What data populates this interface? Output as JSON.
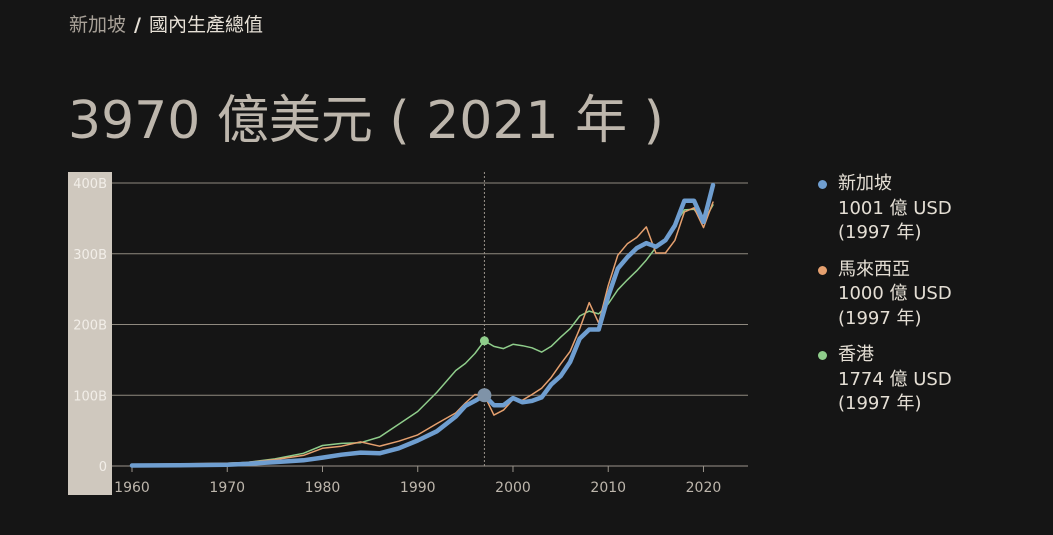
{
  "breadcrumb": {
    "parent": "新加坡",
    "separator": "/",
    "current": "國內生產總值"
  },
  "headline": "3970 億美元 ( 2021 年 )",
  "legend": [
    {
      "name": "新加坡",
      "value": "1001 億 USD",
      "year": "(1997 年)",
      "color": "#6f9ed0"
    },
    {
      "name": "馬來西亞",
      "value": "1000 億 USD",
      "year": "(1997 年)",
      "color": "#e5a06f"
    },
    {
      "name": "香港",
      "value": "1774 億 USD",
      "year": "(1997 年)",
      "color": "#8fcd8b"
    }
  ],
  "chart_data": {
    "type": "line",
    "x_range": [
      1960,
      2021
    ],
    "ylim": [
      0,
      400
    ],
    "y_unit": "B",
    "y_ticks": [
      "0",
      "100B",
      "200B",
      "300B",
      "400B"
    ],
    "x_ticks": [
      "1960",
      "1970",
      "1980",
      "1990",
      "2000",
      "2010",
      "2020"
    ],
    "x_tick_values": [
      1960,
      1970,
      1980,
      1990,
      2000,
      2010,
      2020
    ],
    "y_tick_values": [
      0,
      100,
      200,
      300,
      400
    ],
    "grid": true,
    "highlight_year": 1997,
    "series": [
      {
        "name": "新加坡",
        "color": "#6f9ed0",
        "x": [
          1960,
          1965,
          1970,
          1972,
          1975,
          1978,
          1980,
          1982,
          1984,
          1986,
          1988,
          1990,
          1992,
          1994,
          1995,
          1996,
          1997,
          1998,
          1999,
          2000,
          2001,
          2002,
          2003,
          2004,
          2005,
          2006,
          2007,
          2008,
          2009,
          2010,
          2011,
          2012,
          2013,
          2014,
          2015,
          2016,
          2017,
          2018,
          2019,
          2020,
          2021
        ],
        "values": [
          0.7,
          1,
          1.9,
          3,
          5.5,
          8,
          11.9,
          16,
          19,
          18,
          25,
          36,
          49,
          70,
          85,
          92,
          100,
          86,
          86,
          96,
          90,
          92,
          97,
          115,
          127,
          147,
          180,
          193,
          193,
          240,
          279,
          295,
          308,
          315,
          310,
          319,
          340,
          375,
          375,
          345,
          397
        ]
      },
      {
        "name": "馬來西亞",
        "color": "#e5a06f",
        "x": [
          1960,
          1965,
          1970,
          1972,
          1975,
          1978,
          1980,
          1982,
          1984,
          1986,
          1988,
          1990,
          1992,
          1994,
          1995,
          1996,
          1997,
          1998,
          1999,
          2000,
          2001,
          2002,
          2003,
          2004,
          2005,
          2006,
          2007,
          2008,
          2009,
          2010,
          2011,
          2012,
          2013,
          2014,
          2015,
          2016,
          2017,
          2018,
          2019,
          2020,
          2021
        ],
        "values": [
          2,
          3,
          4,
          5,
          9,
          15,
          25,
          28,
          34,
          28,
          35,
          44,
          60,
          75,
          89,
          101,
          100,
          72,
          79,
          94,
          93,
          101,
          110,
          125,
          144,
          162,
          194,
          231,
          202,
          255,
          298,
          314,
          323,
          338,
          301,
          301,
          319,
          359,
          365,
          337,
          373
        ]
      },
      {
        "name": "香港",
        "color": "#8fcd8b",
        "x": [
          1960,
          1965,
          1970,
          1972,
          1975,
          1978,
          1980,
          1982,
          1984,
          1986,
          1988,
          1990,
          1992,
          1994,
          1995,
          1996,
          1997,
          1998,
          1999,
          2000,
          2001,
          2002,
          2003,
          2004,
          2005,
          2006,
          2007,
          2008,
          2009,
          2010,
          2011,
          2012,
          2013,
          2014,
          2015,
          2016,
          2017,
          2018,
          2019,
          2020,
          2021
        ],
        "values": [
          1.3,
          2.4,
          3.8,
          5,
          10,
          18,
          29,
          32,
          33,
          41,
          59,
          77,
          104,
          135,
          145,
          159,
          177,
          169,
          166,
          172,
          170,
          167,
          161,
          169,
          182,
          194,
          212,
          219,
          215,
          229,
          249,
          263,
          276,
          291,
          309,
          321,
          342,
          362,
          363,
          345,
          369
        ]
      }
    ]
  }
}
